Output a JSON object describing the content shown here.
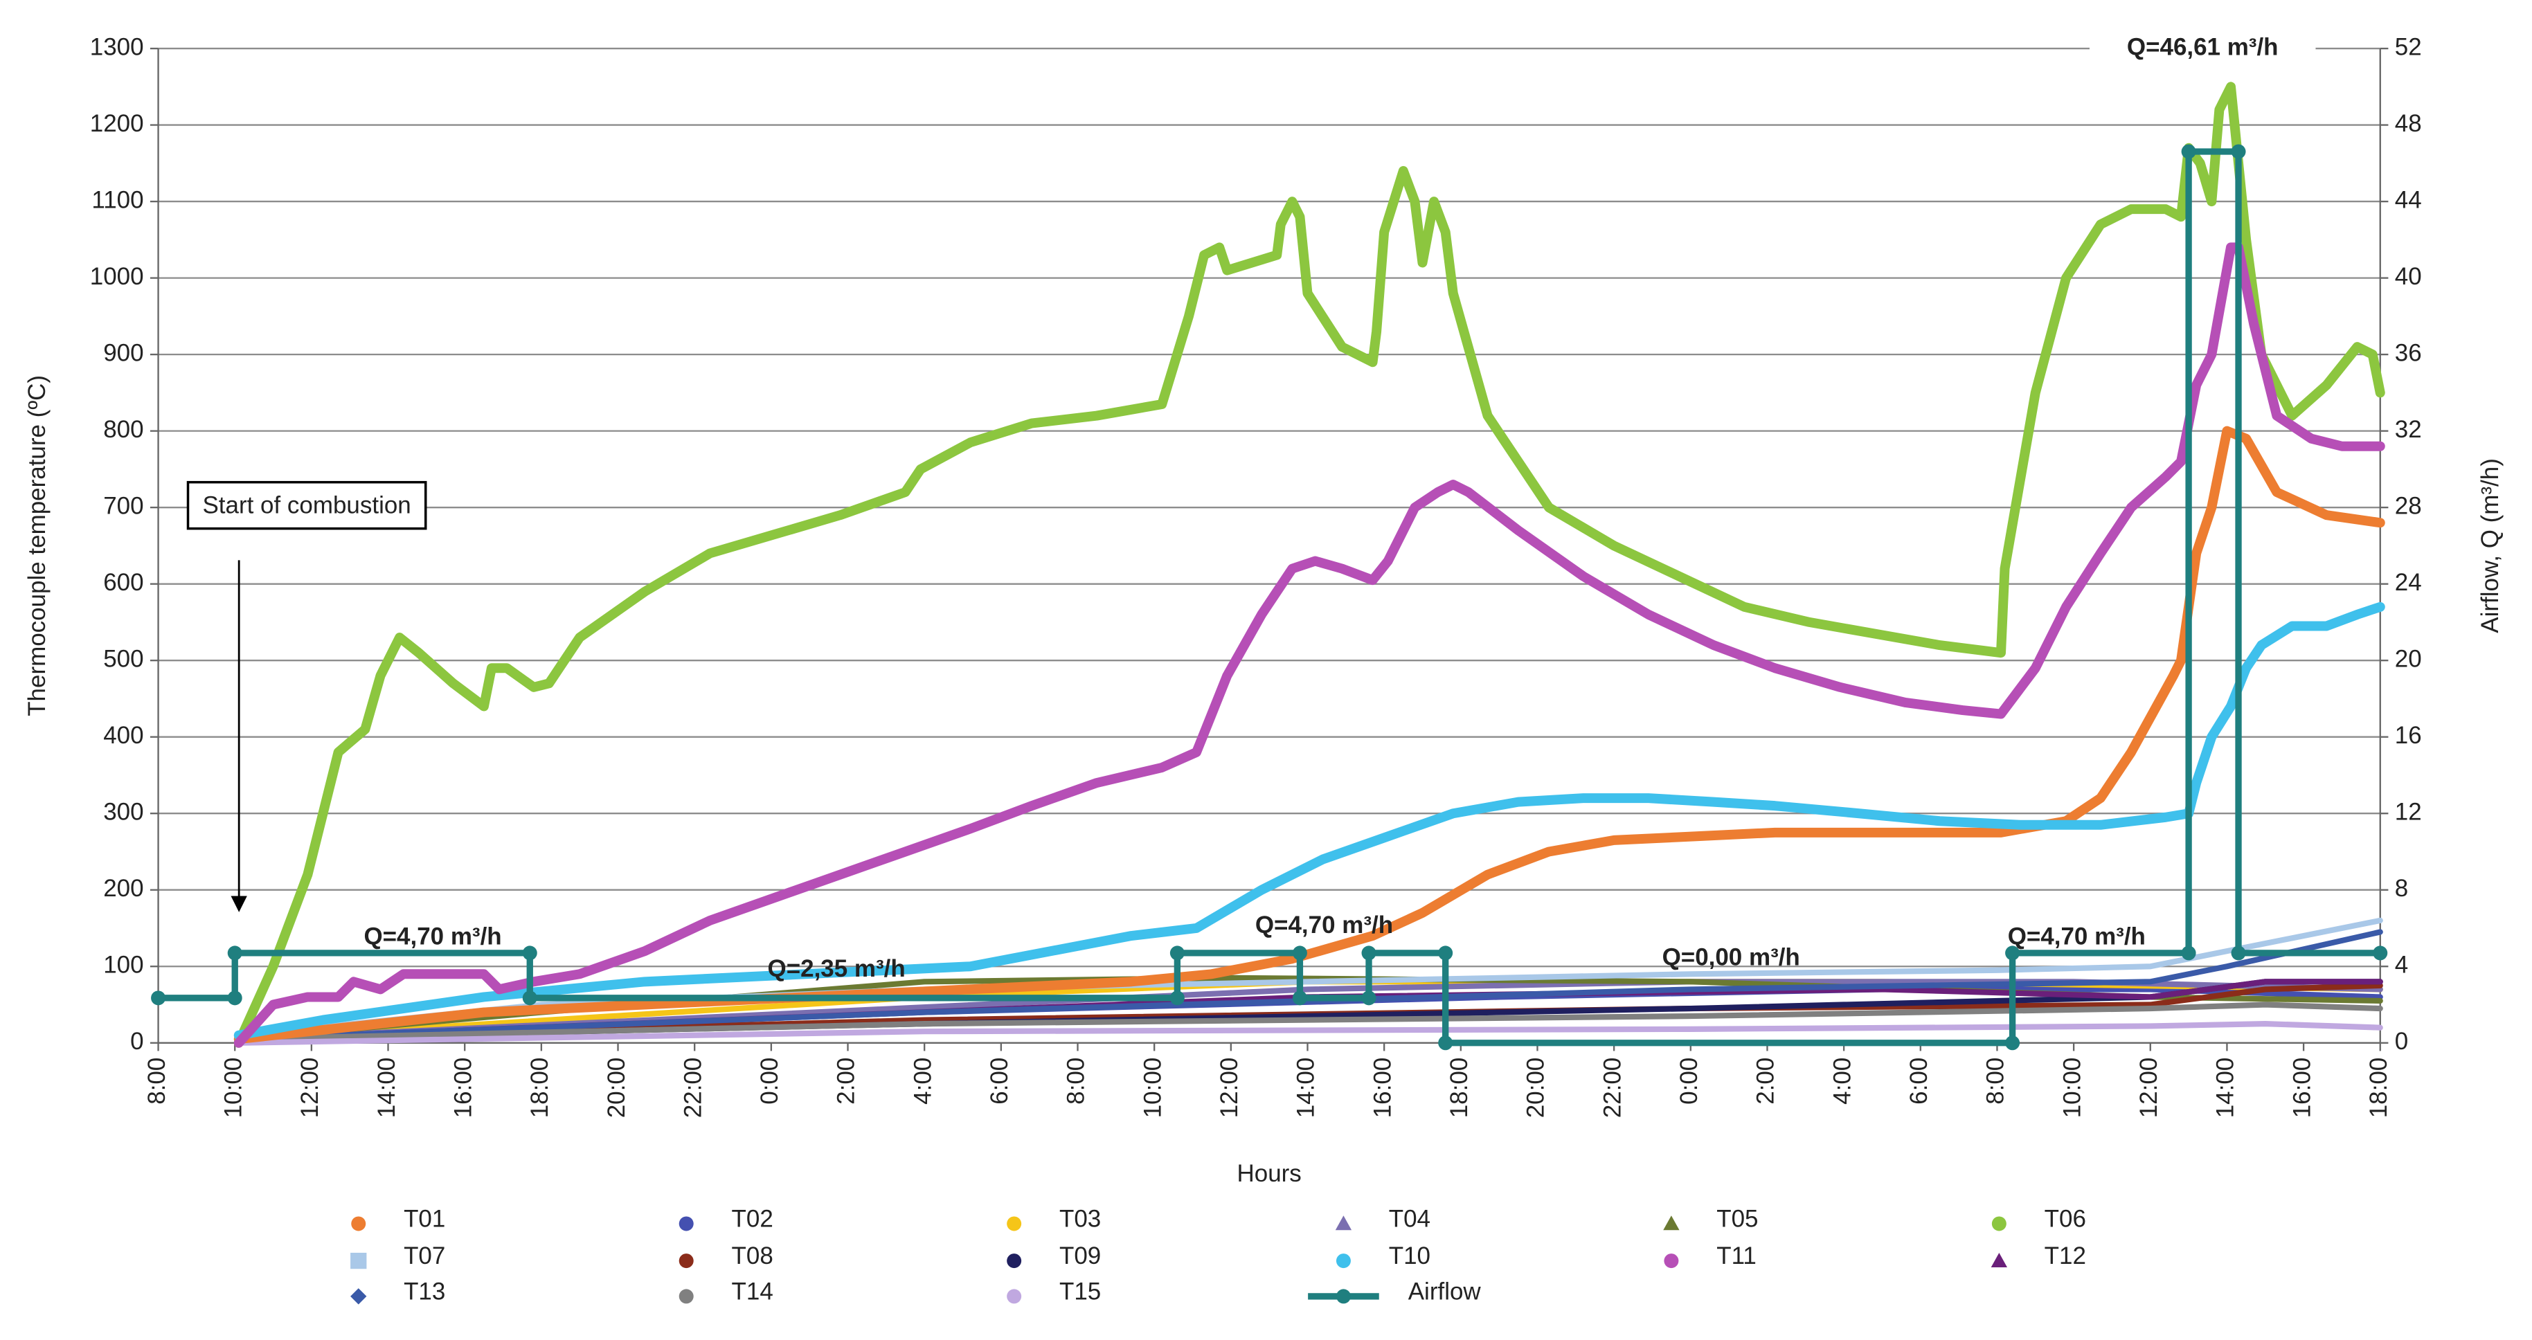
{
  "chart_data": {
    "type": "line",
    "xlabel": "Hours",
    "ylabel": "Thermocouple temperature (ºC)",
    "y2label": "Airflow, Q (m³/h)",
    "xlim": [
      0,
      58
    ],
    "xticks": [
      {
        "value": 0,
        "label": "8:00"
      },
      {
        "value": 2,
        "label": "10:00"
      },
      {
        "value": 4,
        "label": "12:00"
      },
      {
        "value": 6,
        "label": "14:00"
      },
      {
        "value": 8,
        "label": "16:00"
      },
      {
        "value": 10,
        "label": "18:00"
      },
      {
        "value": 12,
        "label": "20:00"
      },
      {
        "value": 14,
        "label": "22:00"
      },
      {
        "value": 16,
        "label": "0:00"
      },
      {
        "value": 18,
        "label": "2:00"
      },
      {
        "value": 20,
        "label": "4:00"
      },
      {
        "value": 22,
        "label": "6:00"
      },
      {
        "value": 24,
        "label": "8:00"
      },
      {
        "value": 26,
        "label": "10:00"
      },
      {
        "value": 28,
        "label": "12:00"
      },
      {
        "value": 30,
        "label": "14:00"
      },
      {
        "value": 32,
        "label": "16:00"
      },
      {
        "value": 34,
        "label": "18:00"
      },
      {
        "value": 36,
        "label": "20:00"
      },
      {
        "value": 38,
        "label": "22:00"
      },
      {
        "value": 40,
        "label": "0:00"
      },
      {
        "value": 42,
        "label": "2:00"
      },
      {
        "value": 44,
        "label": "4:00"
      },
      {
        "value": 46,
        "label": "6:00"
      },
      {
        "value": 48,
        "label": "8:00"
      },
      {
        "value": 50,
        "label": "10:00"
      },
      {
        "value": 52,
        "label": "12:00"
      },
      {
        "value": 54,
        "label": "14:00"
      },
      {
        "value": 56,
        "label": "16:00"
      },
      {
        "value": 58,
        "label": "18:00"
      }
    ],
    "ylim": [
      0,
      1300
    ],
    "yticks": [
      0,
      100,
      200,
      300,
      400,
      500,
      600,
      700,
      800,
      900,
      1000,
      1100,
      1200,
      1300
    ],
    "y2lim": [
      0,
      52
    ],
    "y2ticks": [
      0,
      4,
      8,
      12,
      16,
      20,
      24,
      28,
      32,
      36,
      40,
      44,
      48,
      52
    ],
    "grid": true,
    "legend": "bottom",
    "annotations": [
      "Start of combustion",
      "Q=4,70 m³/h",
      "Q=2,35 m³/h",
      "Q=4,70 m³/h",
      "Q=0,00 m³/h",
      "Q=4,70 m³/h",
      "Q=46,61 m³/h"
    ],
    "series": [
      {
        "name": "T01",
        "color": "#ed7d31",
        "marker": "circle",
        "x": [
          2.1,
          8.5,
          16.9,
          25.4,
          27.5,
          29.6,
          31.7,
          33.0,
          34.7,
          36.3,
          38.0,
          40.1,
          42.2,
          44.4,
          46.5,
          48.1,
          49.8,
          50.7,
          51.5,
          52.6,
          52.8,
          53.2,
          53.6,
          54.0,
          54.5,
          55.3,
          56.6,
          58.0
        ],
        "values": [
          5,
          40,
          60,
          80,
          90,
          110,
          140,
          170,
          220,
          250,
          265,
          270,
          275,
          275,
          275,
          275,
          290,
          320,
          380,
          480,
          500,
          640,
          700,
          800,
          790,
          720,
          690,
          680
        ]
      },
      {
        "name": "T02",
        "color": "#4450b0",
        "marker": "circle",
        "x": [
          2.1,
          20,
          35,
          45,
          52,
          58
        ],
        "values": [
          5,
          40,
          60,
          70,
          70,
          60
        ]
      },
      {
        "name": "T03",
        "color": "#f5c518",
        "marker": "circle",
        "x": [
          2.1,
          20,
          30,
          45,
          58
        ],
        "values": [
          5,
          60,
          80,
          80,
          70
        ]
      },
      {
        "name": "T04",
        "color": "#7b6fb0",
        "marker": "triangle",
        "x": [
          2.1,
          30,
          40,
          50,
          58
        ],
        "values": [
          5,
          70,
          80,
          80,
          70
        ]
      },
      {
        "name": "T05",
        "color": "#6b7a32",
        "marker": "triangle",
        "x": [
          2.1,
          10,
          20,
          28,
          40,
          52,
          58
        ],
        "values": [
          5,
          40,
          80,
          85,
          80,
          60,
          55
        ]
      },
      {
        "name": "T06",
        "color": "#8cc63f",
        "marker": "circle",
        "x": [
          2.1,
          3.0,
          3.9,
          4.7,
          5.4,
          5.8,
          6.3,
          6.8,
          7.7,
          8.5,
          8.7,
          9.1,
          9.8,
          10.2,
          11.0,
          12.7,
          14.4,
          16.1,
          17.8,
          19.5,
          19.9,
          21.2,
          22.8,
          24.5,
          26.2,
          26.9,
          27.3,
          27.7,
          27.9,
          29.2,
          29.3,
          29.6,
          29.8,
          30.0,
          30.9,
          31.7,
          31.8,
          32.0,
          32.5,
          32.8,
          33.0,
          33.3,
          33.6,
          33.8,
          34.7,
          36.3,
          38.0,
          39.7,
          41.4,
          43.1,
          44.8,
          46.5,
          48.1,
          48.2,
          49.0,
          49.8,
          50.7,
          51.5,
          52.4,
          52.8,
          53.0,
          53.3,
          53.6,
          53.8,
          54.1,
          54.5,
          54.9,
          55.7,
          56.6,
          57.4,
          57.8,
          58.0
        ],
        "values": [
          0,
          100,
          220,
          380,
          410,
          480,
          530,
          510,
          470,
          440,
          490,
          490,
          465,
          470,
          530,
          590,
          640,
          665,
          690,
          720,
          750,
          785,
          810,
          820,
          835,
          950,
          1030,
          1040,
          1010,
          1030,
          1070,
          1100,
          1080,
          980,
          910,
          890,
          930,
          1060,
          1140,
          1100,
          1020,
          1100,
          1060,
          980,
          820,
          700,
          650,
          610,
          570,
          550,
          535,
          520,
          510,
          620,
          850,
          1000,
          1070,
          1090,
          1090,
          1080,
          1170,
          1150,
          1100,
          1220,
          1250,
          1050,
          900,
          820,
          860,
          910,
          900,
          850
        ]
      },
      {
        "name": "T07",
        "color": "#a9c8e8",
        "marker": "square",
        "x": [
          2.1,
          10,
          20,
          30,
          40,
          48,
          52,
          54,
          58
        ],
        "values": [
          10,
          50,
          70,
          80,
          90,
          95,
          100,
          120,
          160
        ]
      },
      {
        "name": "T08",
        "color": "#8b2c1a",
        "marker": "circle",
        "x": [
          2.1,
          20,
          40,
          52,
          55,
          58
        ],
        "values": [
          5,
          30,
          45,
          50,
          70,
          75
        ]
      },
      {
        "name": "T09",
        "color": "#1f1f5f",
        "marker": "circle",
        "x": [
          2.1,
          20,
          40,
          52,
          55,
          58
        ],
        "values": [
          5,
          25,
          45,
          60,
          80,
          80
        ]
      },
      {
        "name": "T10",
        "color": "#3fc0ec",
        "marker": "circle",
        "x": [
          2.1,
          4.3,
          8.5,
          12.7,
          16.9,
          21.2,
          23.3,
          25.4,
          27.1,
          28.8,
          30.4,
          32.1,
          33.8,
          35.5,
          37.2,
          38.9,
          40.6,
          42.2,
          44.4,
          46.5,
          48.6,
          50.7,
          52.4,
          53.0,
          53.2,
          53.6,
          54.1,
          54.5,
          54.9,
          55.7,
          56.6,
          57.4,
          58.0
        ],
        "values": [
          10,
          30,
          60,
          80,
          90,
          100,
          120,
          140,
          150,
          200,
          240,
          270,
          300,
          315,
          320,
          320,
          315,
          310,
          300,
          290,
          285,
          285,
          295,
          300,
          340,
          400,
          440,
          490,
          520,
          545,
          545,
          560,
          570
        ]
      },
      {
        "name": "T11",
        "color": "#b64fb6",
        "marker": "circle",
        "x": [
          2.1,
          3.0,
          3.9,
          4.7,
          5.1,
          5.8,
          6.4,
          7.2,
          8.5,
          8.9,
          9.8,
          11.0,
          12.7,
          14.4,
          16.1,
          17.8,
          19.5,
          21.2,
          22.8,
          24.5,
          26.2,
          27.1,
          27.9,
          28.8,
          29.6,
          30.2,
          30.9,
          31.7,
          32.1,
          32.8,
          33.4,
          33.8,
          34.2,
          35.5,
          37.2,
          38.9,
          40.6,
          42.2,
          43.9,
          45.6,
          47.1,
          48.1,
          49.0,
          49.8,
          50.7,
          51.5,
          52.4,
          52.8,
          53.2,
          53.6,
          54.1,
          54.3,
          54.7,
          55.3,
          56.2,
          57.0,
          58.0
        ],
        "values": [
          0,
          50,
          60,
          60,
          80,
          70,
          90,
          90,
          90,
          70,
          80,
          90,
          120,
          160,
          190,
          220,
          250,
          280,
          310,
          340,
          360,
          380,
          480,
          560,
          620,
          630,
          620,
          605,
          630,
          700,
          720,
          730,
          720,
          670,
          610,
          560,
          520,
          490,
          465,
          445,
          435,
          430,
          490,
          570,
          640,
          700,
          740,
          760,
          860,
          900,
          1040,
          1040,
          940,
          820,
          790,
          780,
          780
        ]
      },
      {
        "name": "T12",
        "color": "#6a1f7a",
        "marker": "triangle",
        "x": [
          2.1,
          30,
          45,
          52,
          55,
          58
        ],
        "values": [
          5,
          60,
          70,
          60,
          80,
          80
        ]
      },
      {
        "name": "T13",
        "color": "#3a5aa8",
        "marker": "diamond",
        "x": [
          2.1,
          20,
          40,
          52,
          54,
          58
        ],
        "values": [
          5,
          40,
          70,
          80,
          100,
          145
        ]
      },
      {
        "name": "T14",
        "color": "#808080",
        "marker": "circle",
        "x": [
          2.1,
          20,
          40,
          52,
          55,
          58
        ],
        "values": [
          5,
          25,
          35,
          45,
          50,
          45
        ]
      },
      {
        "name": "T15",
        "color": "#c0a8e0",
        "marker": "circle",
        "x": [
          2.1,
          20,
          40,
          52,
          55,
          58
        ],
        "values": [
          0,
          15,
          18,
          22,
          25,
          20
        ]
      },
      {
        "name": "Airflow",
        "color": "#1f7f7f",
        "marker": "line",
        "axis": "y2",
        "x": [
          0,
          2,
          2,
          9.7,
          9.7,
          26.6,
          26.6,
          29.8,
          29.8,
          31.6,
          31.6,
          33.6,
          33.6,
          48.4,
          48.4,
          53.0,
          53.0,
          54.3,
          54.3,
          58
        ],
        "values": [
          2.35,
          2.35,
          4.7,
          4.7,
          2.35,
          2.35,
          4.7,
          4.7,
          2.35,
          2.35,
          4.7,
          4.7,
          0,
          0,
          4.7,
          4.7,
          46.61,
          46.61,
          4.7,
          4.7
        ]
      }
    ]
  }
}
